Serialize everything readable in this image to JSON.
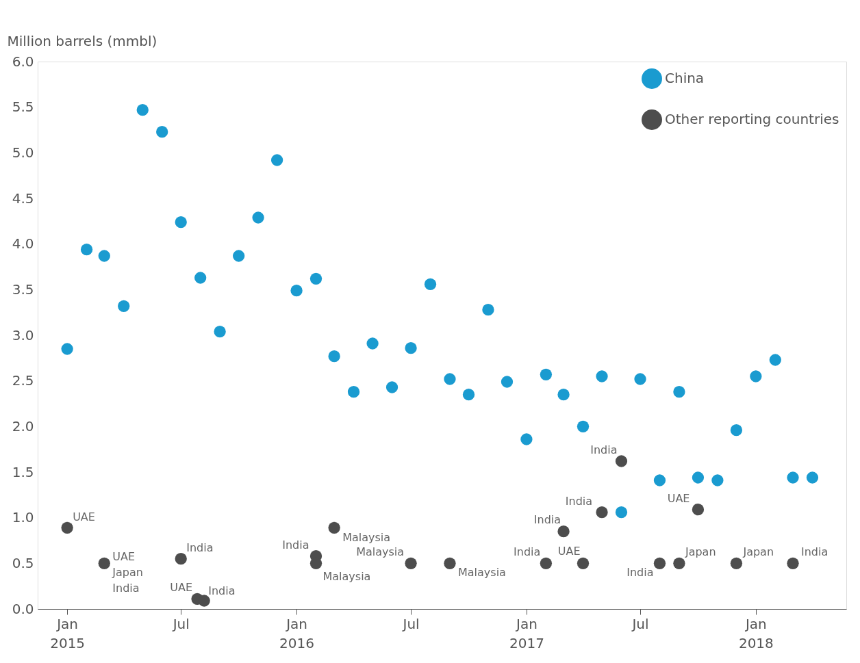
{
  "chart_data": {
    "type": "scatter",
    "ylabel": "Million barrels (mmbl)",
    "ylim": [
      0,
      6
    ],
    "yticks": [
      {
        "value": 0,
        "label": "0.0"
      },
      0.5,
      {
        "value": 1,
        "label": "1.0"
      },
      1.5,
      {
        "value": 2,
        "label": "2.0"
      },
      2.5,
      {
        "value": 3,
        "label": "3.0"
      },
      3.5,
      {
        "value": 4,
        "label": "4.0"
      },
      4.5,
      {
        "value": 5,
        "label": "5.0"
      },
      5.5,
      {
        "value": 6,
        "label": "6.0"
      }
    ],
    "xlim": [
      "2014-11-15",
      "2018-05-25"
    ],
    "xticks": [
      {
        "value": "2015-01",
        "label": "Jan 2015"
      },
      {
        "value": "2015-07",
        "label": "Jul"
      },
      {
        "value": "2016-01",
        "label": "Jan 2016"
      },
      {
        "value": "2016-07",
        "label": "Jul"
      },
      {
        "value": "2017-01",
        "label": "Jan 2017"
      },
      {
        "value": "2017-07",
        "label": "Jul"
      },
      {
        "value": "2018-01",
        "label": "Jan 2018"
      }
    ],
    "legend": "top right",
    "marker": "circle",
    "grid": false,
    "series": [
      {
        "name": "China",
        "color": "#1a9bd0",
        "x": [
          "2015-01",
          "2015-02",
          "2015-03",
          "2015-04",
          "2015-05",
          "2015-06",
          "2015-07",
          "2015-08",
          "2015-09",
          "2015-10",
          "2015-11",
          "2015-12",
          "2016-01",
          "2016-02",
          "2016-03",
          "2016-04",
          "2016-05",
          "2016-06",
          "2016-07",
          "2016-08",
          "2016-09",
          "2016-10",
          "2016-11",
          "2016-12",
          "2017-01",
          "2017-02",
          "2017-03",
          "2017-04",
          "2017-05",
          "2017-06",
          "2017-07",
          "2017-08",
          "2017-09",
          "2017-10",
          "2017-11",
          "2017-12",
          "2018-01",
          "2018-02",
          "2018-03",
          "2018-04"
        ],
        "values": [
          2.85,
          3.94,
          3.87,
          3.32,
          5.47,
          5.23,
          4.24,
          3.63,
          3.04,
          3.87,
          4.29,
          4.92,
          3.49,
          3.62,
          2.77,
          2.38,
          2.91,
          2.43,
          2.86,
          3.56,
          2.52,
          2.35,
          3.28,
          2.49,
          1.86,
          2.57,
          2.35,
          2.0,
          2.55,
          1.06,
          2.52,
          1.41,
          2.38,
          1.44,
          1.41,
          1.96,
          2.55,
          2.73,
          1.44,
          1.44
        ]
      },
      {
        "name": "Other reporting countries",
        "color": "#4d4d4d",
        "x": [
          "2015-01",
          "2015-03",
          "2015-07",
          "2015-07-27",
          "2015-08-07",
          "2016-02",
          "2016-02",
          "2016-03",
          "2016-07",
          "2016-09",
          "2017-02",
          "2017-03",
          "2017-04",
          "2017-05",
          "2017-06",
          "2017-08",
          "2017-09",
          "2017-10",
          "2017-12",
          "2018-03"
        ],
        "values": [
          0.89,
          0.5,
          0.55,
          0.11,
          0.09,
          0.58,
          0.5,
          0.89,
          0.5,
          0.5,
          0.5,
          0.85,
          0.5,
          1.06,
          1.62,
          0.5,
          0.5,
          1.09,
          0.5,
          0.5
        ]
      }
    ],
    "annotations": [
      {
        "text": "UAE",
        "x": "2015-01",
        "y": 0.89
      },
      {
        "text": "UAE\nJapan\nIndia",
        "x": "2015-03",
        "y": 0.5
      },
      {
        "text": "India",
        "x": "2015-07",
        "y": 0.55
      },
      {
        "text": "UAE",
        "x": "2015-07-27",
        "y": 0.11
      },
      {
        "text": "India",
        "x": "2015-08-07",
        "y": 0.09
      },
      {
        "text": "India",
        "x": "2016-02",
        "y": 0.58
      },
      {
        "text": "Malaysia",
        "x": "2016-02",
        "y": 0.5
      },
      {
        "text": "Malaysia",
        "x": "2016-03",
        "y": 0.89
      },
      {
        "text": "Malaysia",
        "x": "2016-07",
        "y": 0.5
      },
      {
        "text": "Malaysia",
        "x": "2016-09",
        "y": 0.5
      },
      {
        "text": "India",
        "x": "2017-02",
        "y": 0.5
      },
      {
        "text": "India",
        "x": "2017-03",
        "y": 0.85
      },
      {
        "text": "UAE",
        "x": "2017-04",
        "y": 0.5
      },
      {
        "text": "India",
        "x": "2017-05",
        "y": 1.06
      },
      {
        "text": "India",
        "x": "2017-06",
        "y": 1.62
      },
      {
        "text": "India",
        "x": "2017-08",
        "y": 0.5
      },
      {
        "text": "Japan",
        "x": "2017-09",
        "y": 0.5
      },
      {
        "text": "UAE",
        "x": "2017-10",
        "y": 1.09
      },
      {
        "text": "Japan",
        "x": "2017-12",
        "y": 0.5
      },
      {
        "text": "India",
        "x": "2018-03",
        "y": 0.5
      }
    ]
  }
}
